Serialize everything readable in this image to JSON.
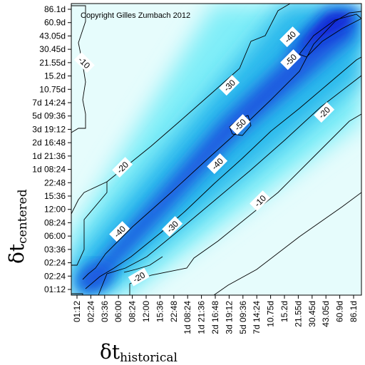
{
  "chart_data": {
    "type": "heatmap",
    "title": "",
    "annotation": "Copyright Gilles Zumbach 2012",
    "xlabel": {
      "symbol": "δt",
      "subscript": "historical"
    },
    "ylabel": {
      "symbol": "δt",
      "subscript": "centered"
    },
    "x_ticks": [
      "01:12",
      "02:24",
      "03:36",
      "06:00",
      "08:24",
      "12:00",
      "15:36",
      "22:48",
      "1d 08:24",
      "1d 21:36",
      "2d 16:48",
      "3d 19:12",
      "5d 09:36",
      "7d 14:24",
      "10.75d",
      "15.2d",
      "21.55d",
      "30.45d",
      "43.05d",
      "60.9d",
      "86.1d"
    ],
    "y_ticks": [
      "01:12",
      "02:24",
      "02:24",
      "03:36",
      "06:00",
      "08:24",
      "12:00",
      "15:36",
      "22:48",
      "1d 08:24",
      "1d 21:36",
      "2d 16:48",
      "3d 19:12",
      "5d 09:36",
      "7d 14:24",
      "10.75d",
      "15.2d",
      "21.55d",
      "30.45d",
      "43.05d",
      "60.9d",
      "86.1d"
    ],
    "contour_levels": [
      10,
      20,
      30,
      40,
      50
    ],
    "contour_labels": [
      "10",
      "20",
      "30",
      "40",
      "50",
      "-10",
      "-20",
      "-30",
      "-40",
      "-50"
    ],
    "value_range": [
      0,
      60
    ],
    "colorscale": [
      "#e8fdfd",
      "#80eef8",
      "#2ab8ec",
      "#1a5ae0",
      "#0a14d4"
    ],
    "grid": false,
    "legend": "none"
  }
}
